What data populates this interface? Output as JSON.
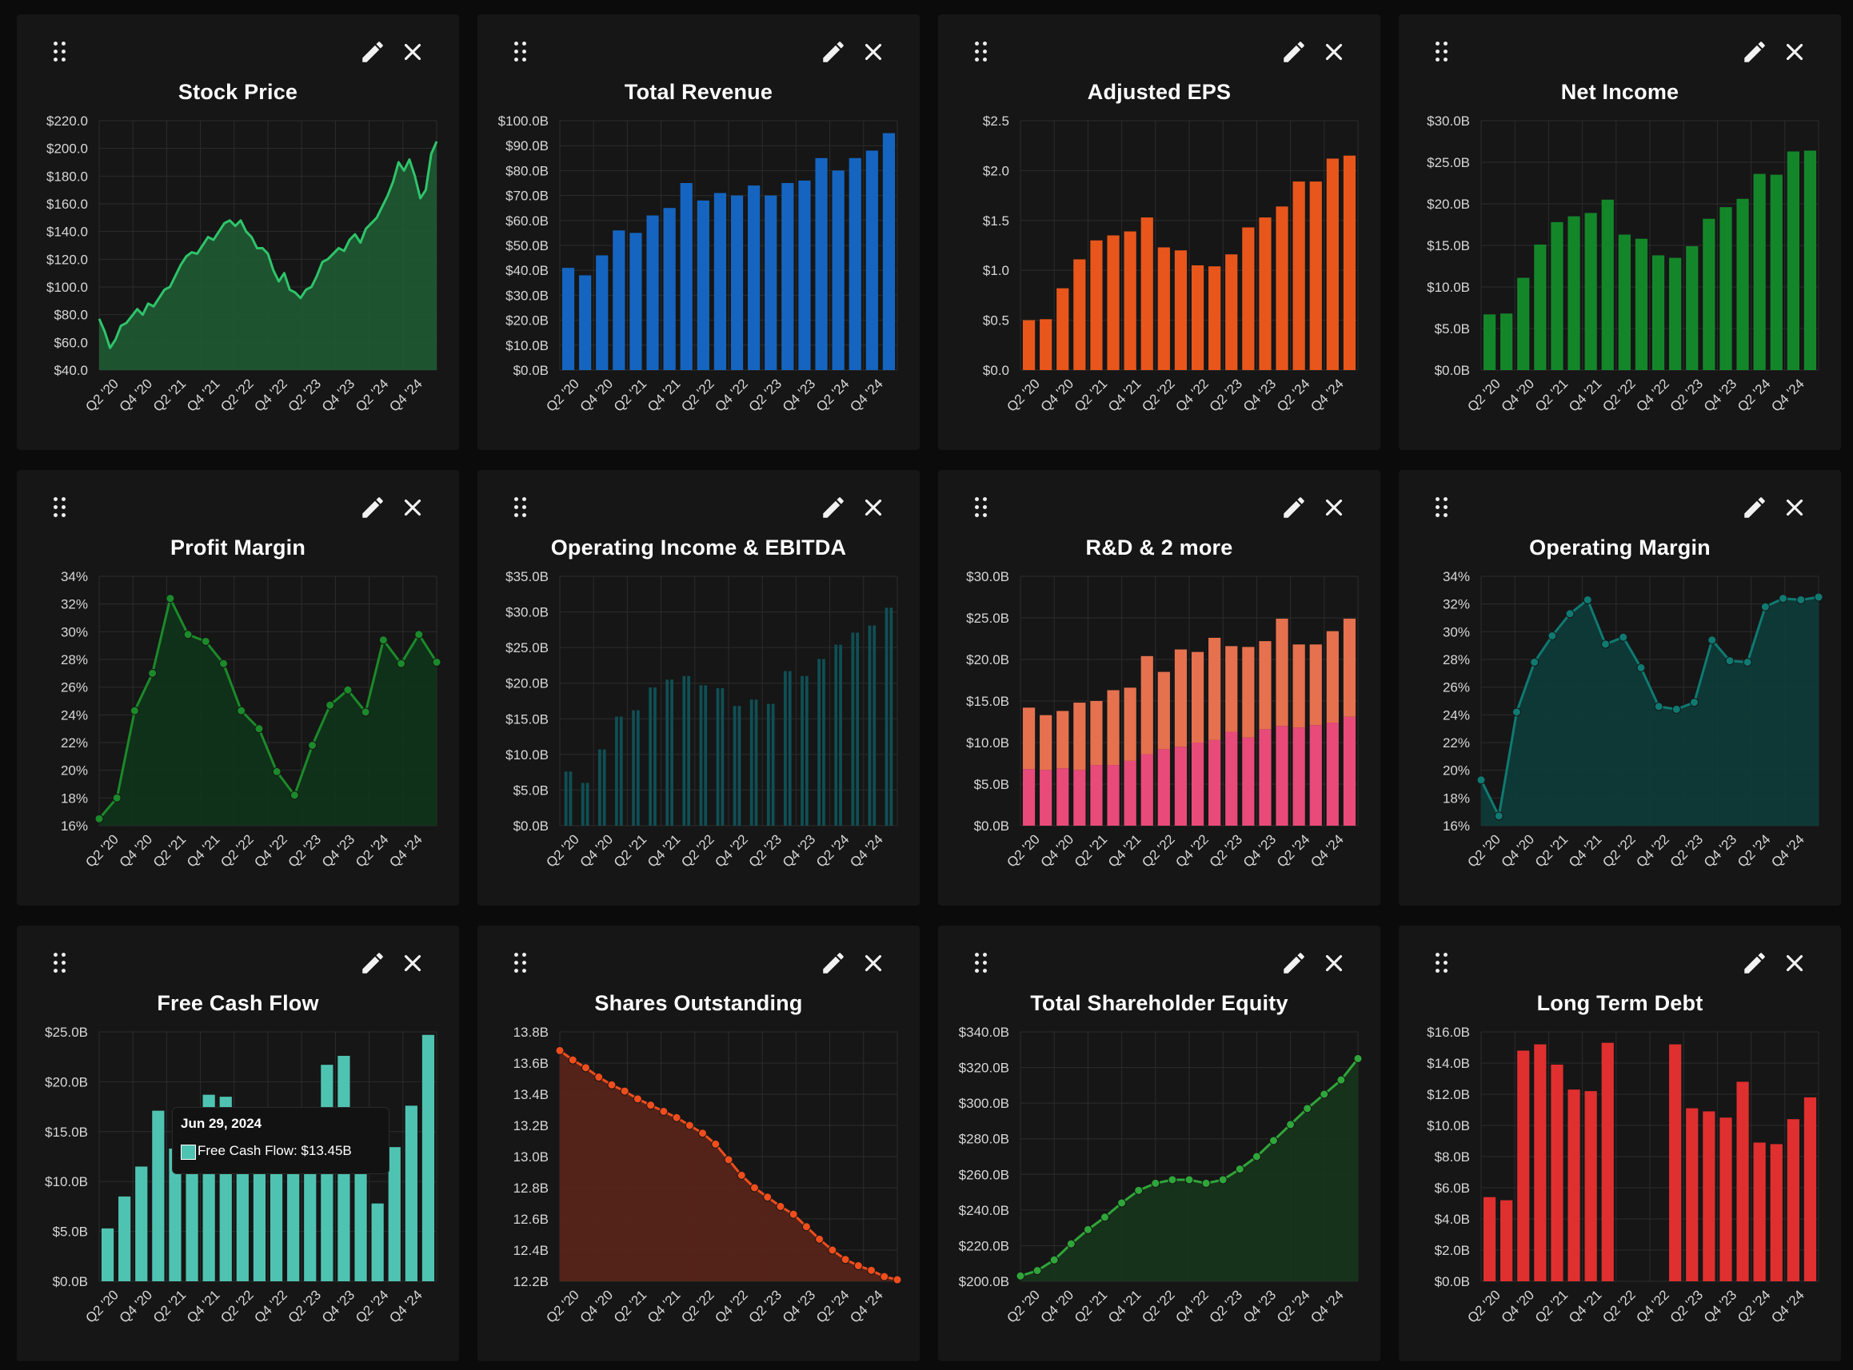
{
  "quarter_labels": [
    "Q2 '20",
    "Q4 '20",
    "Q2 '21",
    "Q4 '21",
    "Q2 '22",
    "Q4 '22",
    "Q2 '23",
    "Q4 '23",
    "Q2 '24",
    "Q4 '24"
  ],
  "tooltip": {
    "date": "Jun 29, 2024",
    "series": "Free Cash Flow",
    "text": "Free Cash Flow: $13.45B",
    "color": "#4fc3b1"
  },
  "chart_data": [
    {
      "id": "stock_price",
      "title": "Stock Price",
      "type": "area",
      "color": "#2fc46a",
      "fill": "#1f5a33",
      "ylim": [
        40,
        220
      ],
      "yticks": [
        40,
        60,
        80,
        100,
        120,
        140,
        160,
        180,
        200,
        220
      ],
      "yfmt": "usd1",
      "x_range": [
        "Q2 '20",
        "Q4 '24"
      ],
      "values": [
        77,
        68,
        56,
        62,
        72,
        74,
        79,
        84,
        80,
        88,
        86,
        92,
        98,
        100,
        108,
        116,
        122,
        125,
        124,
        130,
        136,
        134,
        140,
        146,
        148,
        144,
        148,
        140,
        136,
        128,
        128,
        124,
        112,
        104,
        110,
        98,
        96,
        92,
        98,
        100,
        108,
        118,
        120,
        124,
        128,
        126,
        134,
        138,
        132,
        142,
        146,
        150,
        158,
        166,
        176,
        190,
        184,
        192,
        180,
        164,
        170,
        196,
        205
      ]
    },
    {
      "id": "total_revenue",
      "title": "Total Revenue",
      "type": "bar",
      "color": "#1565c0",
      "ylim": [
        0,
        100
      ],
      "yticks": [
        0,
        10,
        20,
        30,
        40,
        50,
        60,
        70,
        80,
        90,
        100
      ],
      "yfmt": "usdB1",
      "values": [
        41,
        38,
        46,
        56,
        55,
        62,
        65,
        75,
        68,
        71,
        70,
        74,
        70,
        75,
        76,
        85,
        80,
        85,
        88,
        95
      ]
    },
    {
      "id": "adjusted_eps",
      "title": "Adjusted EPS",
      "type": "bar",
      "color": "#e8561b",
      "ylim": [
        0,
        2.5
      ],
      "yticks": [
        0,
        0.5,
        1.0,
        1.5,
        2.0,
        2.5
      ],
      "yfmt": "usd1",
      "values": [
        0.5,
        0.51,
        0.82,
        1.11,
        1.3,
        1.35,
        1.39,
        1.53,
        1.23,
        1.2,
        1.05,
        1.04,
        1.16,
        1.43,
        1.53,
        1.64,
        1.89,
        1.89,
        2.12,
        2.15
      ]
    },
    {
      "id": "net_income",
      "title": "Net Income",
      "type": "bar",
      "color": "#14862a",
      "ylim": [
        0,
        30
      ],
      "yticks": [
        0,
        5,
        10,
        15,
        20,
        25,
        30
      ],
      "yfmt": "usdB1",
      "values": [
        6.7,
        6.8,
        11.1,
        15.1,
        17.8,
        18.5,
        18.9,
        20.5,
        16.3,
        15.8,
        13.8,
        13.5,
        14.9,
        18.2,
        19.6,
        20.6,
        23.6,
        23.5,
        26.3,
        26.4
      ]
    },
    {
      "id": "profit_margin",
      "title": "Profit Margin",
      "type": "areaDots",
      "color": "#1b8a2a",
      "fill": "#10341a",
      "ylim": [
        16,
        34
      ],
      "yticks": [
        16,
        18,
        20,
        22,
        24,
        26,
        28,
        30,
        32,
        34
      ],
      "yfmt": "pct",
      "values": [
        16.5,
        18.0,
        24.3,
        27.0,
        32.4,
        29.8,
        29.3,
        27.7,
        24.3,
        23.0,
        19.9,
        18.2,
        21.8,
        24.7,
        25.8,
        24.2,
        29.4,
        27.7,
        29.8,
        27.8
      ]
    },
    {
      "id": "operating_income_ebitda",
      "title": "Operating Income & EBITDA",
      "type": "groupbar",
      "ylim": [
        0,
        35
      ],
      "yticks": [
        0,
        5,
        10,
        15,
        20,
        25,
        30,
        35
      ],
      "yfmt": "usdB1",
      "series": [
        {
          "name": "Operating Income",
          "color": "#0f4f55",
          "values": [
            7.6,
            6.0,
            10.7,
            15.3,
            16.2,
            19.4,
            20.5,
            21.0,
            19.7,
            19.3,
            16.8,
            17.7,
            17.1,
            21.7,
            21.0,
            23.4,
            25.4,
            27.1,
            28.1,
            30.6
          ]
        },
        {
          "name": "EBITDA",
          "color": "#0f4f55",
          "values": [
            7.6,
            6.0,
            10.7,
            15.3,
            16.2,
            19.4,
            20.5,
            21.0,
            19.7,
            19.3,
            16.8,
            17.7,
            17.1,
            21.7,
            21.0,
            23.4,
            25.4,
            27.1,
            28.1,
            30.6
          ]
        }
      ]
    },
    {
      "id": "rd_and_more",
      "title": "R&D & 2 more",
      "type": "stackbar",
      "ylim": [
        0,
        30
      ],
      "yticks": [
        0,
        5,
        10,
        15,
        20,
        25,
        30
      ],
      "yfmt": "usdB1",
      "series": [
        {
          "name": "R&D",
          "color": "#e84a7a",
          "values": [
            6.8,
            6.7,
            6.9,
            6.7,
            7.3,
            7.3,
            7.8,
            8.6,
            9.2,
            9.5,
            10.0,
            10.3,
            11.3,
            10.6,
            11.6,
            12.0,
            11.8,
            12.1,
            12.4,
            13.1
          ]
        },
        {
          "name": "More",
          "color": "#e5714f",
          "values": [
            7.4,
            6.6,
            6.9,
            8.1,
            7.7,
            9.0,
            8.8,
            11.8,
            9.3,
            11.7,
            10.9,
            12.3,
            10.3,
            10.9,
            10.6,
            12.9,
            10.0,
            9.7,
            11.0,
            11.8
          ]
        }
      ]
    },
    {
      "id": "operating_margin",
      "title": "Operating Margin",
      "type": "areaDots",
      "color": "#0f7a72",
      "fill": "#0d3c39",
      "ylim": [
        16,
        34
      ],
      "yticks": [
        16,
        18,
        20,
        22,
        24,
        26,
        28,
        30,
        32,
        34
      ],
      "yfmt": "pct",
      "values": [
        19.3,
        16.7,
        24.2,
        27.8,
        29.7,
        31.3,
        32.3,
        29.1,
        29.6,
        27.4,
        24.6,
        24.4,
        24.9,
        29.4,
        27.9,
        27.8,
        31.8,
        32.4,
        32.3,
        32.5
      ]
    },
    {
      "id": "free_cash_flow",
      "title": "Free Cash Flow",
      "type": "bar",
      "color": "#4fc3b1",
      "ylim": [
        0,
        25
      ],
      "yticks": [
        0,
        5,
        10,
        15,
        20,
        25
      ],
      "yfmt": "usdB1",
      "values": [
        5.3,
        8.5,
        11.5,
        17.1,
        13.3,
        13.4,
        18.7,
        18.5,
        17.0,
        16.6,
        15.5,
        16.9,
        17.0,
        21.7,
        22.6,
        16.6,
        7.8,
        13.45,
        17.6,
        24.7
      ]
    },
    {
      "id": "shares_outstanding",
      "title": "Shares Outstanding",
      "type": "areaDots",
      "color": "#f04d1c",
      "fill": "#5a2318",
      "ylim": [
        12.2,
        13.8
      ],
      "yticks": [
        12.2,
        12.4,
        12.6,
        12.8,
        13.0,
        13.2,
        13.4,
        13.6,
        13.8
      ],
      "yfmt": "B1",
      "values": [
        13.68,
        13.62,
        13.57,
        13.51,
        13.46,
        13.42,
        13.37,
        13.33,
        13.29,
        13.25,
        13.2,
        13.15,
        13.08,
        12.98,
        12.88,
        12.8,
        12.74,
        12.68,
        12.63,
        12.55,
        12.47,
        12.4,
        12.34,
        12.3,
        12.27,
        12.23,
        12.21
      ]
    },
    {
      "id": "total_shareholder_equity",
      "title": "Total Shareholder Equity",
      "type": "areaDots",
      "color": "#2fa63a",
      "fill": "#17351b",
      "ylim": [
        200,
        340
      ],
      "yticks": [
        200,
        220,
        240,
        260,
        280,
        300,
        320,
        340
      ],
      "yfmt": "usdB1",
      "values": [
        203,
        206,
        212,
        221,
        229,
        236,
        244,
        251,
        255,
        257,
        257,
        255,
        257,
        263,
        270,
        279,
        288,
        297,
        305,
        313,
        325
      ]
    },
    {
      "id": "long_term_debt",
      "title": "Long Term Debt",
      "type": "bar",
      "color": "#e02f2f",
      "ylim": [
        0,
        16
      ],
      "yticks": [
        0,
        2,
        4,
        6,
        8,
        10,
        12,
        14,
        16
      ],
      "yfmt": "usdB1",
      "values": [
        5.4,
        5.2,
        14.8,
        15.2,
        13.9,
        12.3,
        12.2,
        15.3,
        null,
        null,
        null,
        15.2,
        11.1,
        10.9,
        10.5,
        12.8,
        8.9,
        8.8,
        10.4,
        11.8
      ]
    }
  ]
}
